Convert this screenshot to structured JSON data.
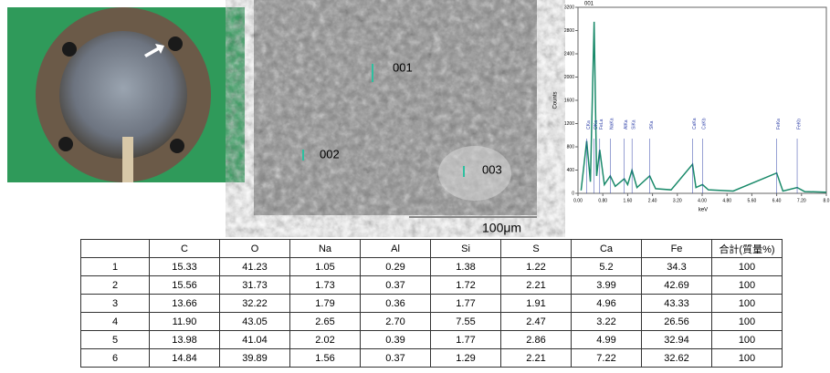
{
  "sem": {
    "points": [
      "001",
      "002",
      "003"
    ],
    "scale_bar": "100μm"
  },
  "spectrum": {
    "title": "001",
    "ylabel": "Counts",
    "xlabel": "keV",
    "ylim": [
      0,
      3200
    ],
    "yticks": [
      0,
      400,
      800,
      1200,
      1600,
      2000,
      2400,
      2800,
      3200
    ],
    "xlim": [
      0,
      8
    ],
    "xticks": [
      {
        "value": 0,
        "label": "0.00"
      },
      {
        "value": 0.8,
        "label": "0.80"
      },
      {
        "value": 1.6,
        "label": "1.60"
      },
      {
        "value": 2.4,
        "label": "2.40"
      },
      {
        "value": 3.2,
        "label": "3.20"
      },
      {
        "value": 4,
        "label": "4.00"
      },
      {
        "value": 4.8,
        "label": "4.80"
      },
      {
        "value": 5.6,
        "label": "5.60"
      },
      {
        "value": 6.4,
        "label": "6.40"
      },
      {
        "value": 7.2,
        "label": "7.20"
      },
      {
        "value": 8,
        "label": "8.0"
      }
    ],
    "x": [
      0.1,
      0.28,
      0.4,
      0.52,
      0.6,
      0.7,
      0.85,
      1.04,
      1.2,
      1.49,
      1.6,
      1.74,
      1.9,
      2.31,
      2.5,
      3.0,
      3.69,
      3.8,
      4.01,
      4.2,
      5.0,
      6.4,
      6.6,
      7.06,
      7.3,
      8.0
    ],
    "values": [
      50,
      900,
      200,
      2950,
      300,
      750,
      150,
      300,
      120,
      250,
      150,
      400,
      100,
      300,
      80,
      60,
      500,
      100,
      150,
      60,
      40,
      350,
      40,
      100,
      30,
      20
    ],
    "color": "#1a8a6a",
    "peaks": [
      {
        "label": "CKa",
        "x": 0.28
      },
      {
        "label": "OKa",
        "x": 0.52
      },
      {
        "label": "FeLa",
        "x": 0.7
      },
      {
        "label": "NaKa",
        "x": 1.04
      },
      {
        "label": "AlKa",
        "x": 1.49
      },
      {
        "label": "SiKa",
        "x": 1.74
      },
      {
        "label": "SKa",
        "x": 2.31
      },
      {
        "label": "CaKa",
        "x": 3.69
      },
      {
        "label": "CaKb",
        "x": 4.01
      },
      {
        "label": "FeKa",
        "x": 6.4
      },
      {
        "label": "FeKb",
        "x": 7.06
      }
    ]
  },
  "table": {
    "header": [
      "C",
      "O",
      "Na",
      "Al",
      "Si",
      "S",
      "Ca",
      "Fe",
      "合計(質量%)"
    ],
    "rows": [
      [
        "1",
        "15.33",
        "41.23",
        "1.05",
        "0.29",
        "1.38",
        "1.22",
        "5.2",
        "34.3",
        "100"
      ],
      [
        "2",
        "15.56",
        "31.73",
        "1.73",
        "0.37",
        "1.72",
        "2.21",
        "3.99",
        "42.69",
        "100"
      ],
      [
        "3",
        "13.66",
        "32.22",
        "1.79",
        "0.36",
        "1.77",
        "1.91",
        "4.96",
        "43.33",
        "100"
      ],
      [
        "4",
        "11.90",
        "43.05",
        "2.65",
        "2.70",
        "7.55",
        "2.47",
        "3.22",
        "26.56",
        "100"
      ],
      [
        "5",
        "13.98",
        "41.04",
        "2.02",
        "0.39",
        "1.77",
        "2.86",
        "4.99",
        "32.94",
        "100"
      ],
      [
        "6",
        "14.84",
        "39.89",
        "1.56",
        "0.37",
        "1.29",
        "2.21",
        "7.22",
        "32.62",
        "100"
      ]
    ]
  }
}
